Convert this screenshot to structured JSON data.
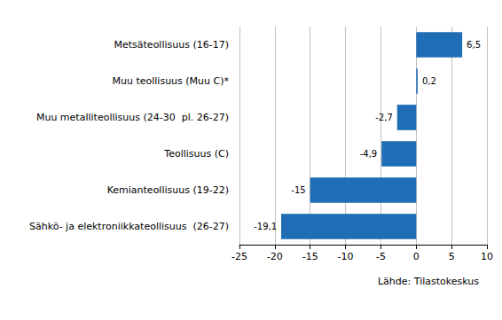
{
  "chart_data": {
    "type": "bar",
    "orientation": "horizontal",
    "categories": [
      "Metsäteollisuus (16-17)",
      "Muu teollisuus (Muu C)*",
      "Muu metalliteollisuus (24-30  pl. 26-27)",
      "Teollisuus (C)",
      "Kemianteollisuus (19-22)",
      "Sähkö- ja elektroniikkateollisuus  (26-27)"
    ],
    "values": [
      6.5,
      0.2,
      -2.7,
      -4.9,
      -15,
      -19.1
    ],
    "value_labels": [
      "6,5",
      "0,2",
      "-2,7",
      "-4,9",
      "-15",
      "-19,1"
    ],
    "data_labels": true,
    "color": "#1f6db5",
    "xlim": [
      -25,
      10
    ],
    "xticks": [
      -25,
      -20,
      -15,
      -10,
      -5,
      0,
      5,
      10
    ],
    "grid": true,
    "source": "Lähde: Tilastokeskus"
  }
}
